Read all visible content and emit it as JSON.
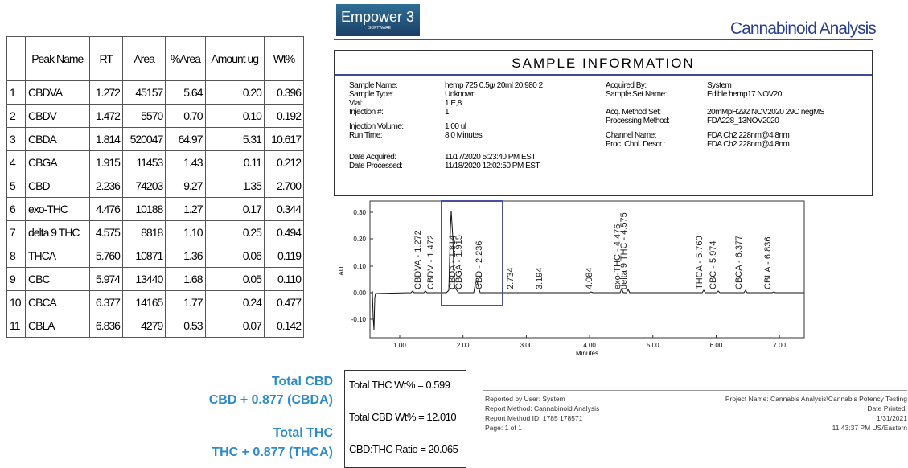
{
  "header": {
    "logo": "Empower 3",
    "logo_sub": "SOFTWARE",
    "title": "Cannabinoid Analysis"
  },
  "table": {
    "columns": [
      "",
      "Peak Name",
      "RT",
      "Area",
      "%Area",
      "Amount ug",
      "Wt%"
    ],
    "rows": [
      [
        "1",
        "CBDVA",
        "1.272",
        "45157",
        "5.64",
        "0.20",
        "0.396"
      ],
      [
        "2",
        "CBDV",
        "1.472",
        "5570",
        "0.70",
        "0.10",
        "0.192"
      ],
      [
        "3",
        "CBDA",
        "1.814",
        "520047",
        "64.97",
        "5.31",
        "10.617"
      ],
      [
        "4",
        "CBGA",
        "1.915",
        "11453",
        "1.43",
        "0.11",
        "0.212"
      ],
      [
        "5",
        "CBD",
        "2.236",
        "74203",
        "9.27",
        "1.35",
        "2.700"
      ],
      [
        "6",
        "exo-THC",
        "4.476",
        "10188",
        "1.27",
        "0.17",
        "0.344"
      ],
      [
        "7",
        "delta 9 THC",
        "4.575",
        "8818",
        "1.10",
        "0.25",
        "0.494"
      ],
      [
        "8",
        "THCA",
        "5.760",
        "10871",
        "1.36",
        "0.06",
        "0.119"
      ],
      [
        "9",
        "CBC",
        "5.974",
        "13440",
        "1.68",
        "0.05",
        "0.110"
      ],
      [
        "10",
        "CBCA",
        "6.377",
        "14165",
        "1.77",
        "0.24",
        "0.477"
      ],
      [
        "11",
        "CBLA",
        "6.836",
        "4279",
        "0.53",
        "0.07",
        "0.142"
      ]
    ]
  },
  "sample_info": {
    "title": "SAMPLE INFORMATION",
    "left": [
      [
        "Sample Name:",
        "hemp 725 0.5g/ 20ml 20.980 2"
      ],
      [
        "Sample Type:",
        "Unknown"
      ],
      [
        "Vial:",
        "1:E,8"
      ],
      [
        "Injection #:",
        "1"
      ],
      [
        "Injection Volume:",
        "1.00 ul"
      ],
      [
        "Run Time:",
        "8.0 Minutes"
      ],
      [
        "Date Acquired:",
        "11/17/2020 5:23:40 PM EST"
      ],
      [
        "Date Processed:",
        "11/18/2020 12:02:50 PM EST"
      ]
    ],
    "right": [
      [
        "Acquired By:",
        "System"
      ],
      [
        "Sample Set Name:",
        "Edible hemp17 NOV20"
      ],
      [
        "Acq. Method Set:",
        "20mMpH292 NOV2020 29C negMS"
      ],
      [
        "Processing Method:",
        "FDA228_13NOV2020"
      ],
      [
        "Channel Name:",
        "FDA Ch2 228nm@4.8nm"
      ],
      [
        "Proc. Chnl. Descr.:",
        "FDA Ch2 228nm@4.8nm"
      ]
    ]
  },
  "chromatogram": {
    "y_label": "AU",
    "x_label": "Minutes",
    "yticks": [
      "0.30",
      "0.20",
      "0.10",
      "0.00",
      "-0.10"
    ],
    "xticks": [
      "1.00",
      "2.00",
      "3.00",
      "4.00",
      "5.00",
      "6.00",
      "7.00"
    ],
    "peaks": [
      "CBDVA - 1.272",
      "CBDV - 1.472",
      "CBDA - 1.814",
      "CBGA - 1.915",
      "CBD - 2.236",
      "2.734",
      "3.194",
      "4.084",
      "exo-THC - 4.476",
      "delta 9 THC - 4.575",
      "THCA - 5.760",
      "CBC - 5.974",
      "CBCA - 6.377",
      "CBLA - 6.836"
    ]
  },
  "formulas": {
    "cbd_title": "Total CBD",
    "cbd_formula": "CBD + 0.877 (CBDA)",
    "thc_title": "Total THC",
    "thc_formula": "THC + 0.877 (THCA)"
  },
  "results": [
    "Total THC Wt% = 0.599",
    "Total CBD Wt% = 12.010",
    "CBD:THC Ratio = 20.065"
  ],
  "footer": {
    "left": [
      "Reported by User: System",
      "Report Method: Cannabinoid Analysis",
      "Report Method ID: 1785 178571",
      "Page: 1 of 1"
    ],
    "right": [
      "Project Name: Cannabis Analysis\\Cannabis Potency Testing",
      "Date Printed:",
      "1/31/2021",
      "11:43:37 PM US/Eastern"
    ]
  }
}
